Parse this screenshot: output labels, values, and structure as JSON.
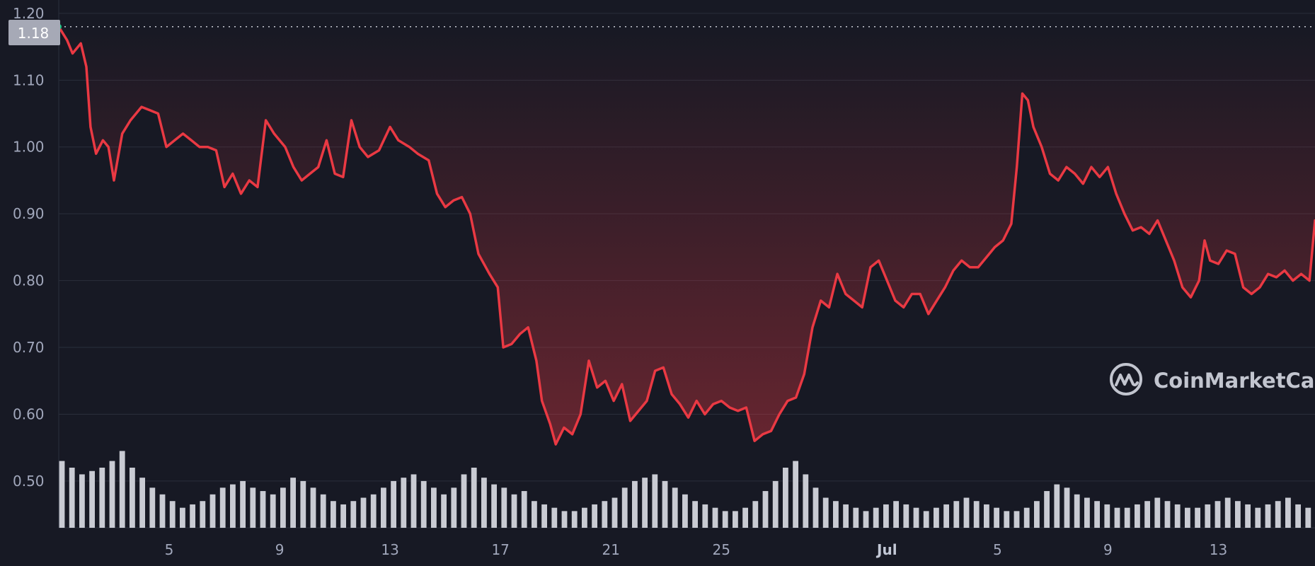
{
  "chart_data": {
    "type": "area",
    "title": "",
    "xlabel": "",
    "ylabel": "",
    "y_ticks": [
      "0.50",
      "0.60",
      "0.70",
      "0.80",
      "0.90",
      "1.00",
      "1.10",
      "1.20"
    ],
    "x_ticks": [
      {
        "label": "5",
        "day": 5,
        "bold": false
      },
      {
        "label": "9",
        "day": 9,
        "bold": false
      },
      {
        "label": "13",
        "day": 13,
        "bold": false
      },
      {
        "label": "17",
        "day": 17,
        "bold": false
      },
      {
        "label": "21",
        "day": 21,
        "bold": false
      },
      {
        "label": "25",
        "day": 25,
        "bold": false
      },
      {
        "label": "Jul",
        "day": 31,
        "bold": true
      },
      {
        "label": "5",
        "day": 35,
        "bold": false
      },
      {
        "label": "9",
        "day": 39,
        "bold": false
      },
      {
        "label": "13",
        "day": 43,
        "bold": false
      }
    ],
    "ylim": [
      0.43,
      1.22
    ],
    "xlim_days": [
      1,
      46.5
    ],
    "current_price": "1.18",
    "grid": true,
    "price_series": {
      "name": "",
      "color": "#ea3943",
      "points": [
        [
          1.0,
          1.18
        ],
        [
          1.3,
          1.16
        ],
        [
          1.5,
          1.14
        ],
        [
          1.8,
          1.155
        ],
        [
          2.0,
          1.12
        ],
        [
          2.15,
          1.03
        ],
        [
          2.35,
          0.99
        ],
        [
          2.6,
          1.01
        ],
        [
          2.8,
          1.0
        ],
        [
          3.0,
          0.95
        ],
        [
          3.3,
          1.02
        ],
        [
          3.6,
          1.04
        ],
        [
          4.0,
          1.06
        ],
        [
          4.3,
          1.055
        ],
        [
          4.6,
          1.05
        ],
        [
          4.9,
          1.0
        ],
        [
          5.2,
          1.01
        ],
        [
          5.5,
          1.02
        ],
        [
          5.8,
          1.01
        ],
        [
          6.1,
          1.0
        ],
        [
          6.4,
          1.0
        ],
        [
          6.7,
          0.995
        ],
        [
          7.0,
          0.94
        ],
        [
          7.3,
          0.96
        ],
        [
          7.6,
          0.93
        ],
        [
          7.9,
          0.95
        ],
        [
          8.2,
          0.94
        ],
        [
          8.5,
          1.04
        ],
        [
          8.8,
          1.02
        ],
        [
          9.2,
          1.0
        ],
        [
          9.5,
          0.97
        ],
        [
          9.8,
          0.95
        ],
        [
          10.1,
          0.96
        ],
        [
          10.4,
          0.97
        ],
        [
          10.7,
          1.01
        ],
        [
          11.0,
          0.96
        ],
        [
          11.3,
          0.955
        ],
        [
          11.6,
          1.04
        ],
        [
          11.9,
          1.0
        ],
        [
          12.2,
          0.985
        ],
        [
          12.6,
          0.995
        ],
        [
          13.0,
          1.03
        ],
        [
          13.3,
          1.01
        ],
        [
          13.7,
          1.0
        ],
        [
          14.0,
          0.99
        ],
        [
          14.4,
          0.98
        ],
        [
          14.7,
          0.93
        ],
        [
          15.0,
          0.91
        ],
        [
          15.3,
          0.92
        ],
        [
          15.6,
          0.925
        ],
        [
          15.9,
          0.9
        ],
        [
          16.2,
          0.84
        ],
        [
          16.6,
          0.81
        ],
        [
          16.9,
          0.79
        ],
        [
          17.1,
          0.7
        ],
        [
          17.4,
          0.705
        ],
        [
          17.7,
          0.72
        ],
        [
          18.0,
          0.73
        ],
        [
          18.3,
          0.68
        ],
        [
          18.5,
          0.62
        ],
        [
          18.8,
          0.585
        ],
        [
          19.0,
          0.555
        ],
        [
          19.3,
          0.58
        ],
        [
          19.6,
          0.57
        ],
        [
          19.9,
          0.6
        ],
        [
          20.2,
          0.68
        ],
        [
          20.5,
          0.64
        ],
        [
          20.8,
          0.65
        ],
        [
          21.1,
          0.62
        ],
        [
          21.4,
          0.645
        ],
        [
          21.7,
          0.59
        ],
        [
          22.0,
          0.605
        ],
        [
          22.3,
          0.62
        ],
        [
          22.6,
          0.665
        ],
        [
          22.9,
          0.67
        ],
        [
          23.2,
          0.63
        ],
        [
          23.5,
          0.615
        ],
        [
          23.8,
          0.595
        ],
        [
          24.1,
          0.62
        ],
        [
          24.4,
          0.6
        ],
        [
          24.7,
          0.615
        ],
        [
          25.0,
          0.62
        ],
        [
          25.3,
          0.61
        ],
        [
          25.6,
          0.605
        ],
        [
          25.9,
          0.61
        ],
        [
          26.2,
          0.56
        ],
        [
          26.5,
          0.57
        ],
        [
          26.8,
          0.575
        ],
        [
          27.1,
          0.6
        ],
        [
          27.4,
          0.62
        ],
        [
          27.7,
          0.625
        ],
        [
          28.0,
          0.66
        ],
        [
          28.3,
          0.73
        ],
        [
          28.6,
          0.77
        ],
        [
          28.9,
          0.76
        ],
        [
          29.2,
          0.81
        ],
        [
          29.5,
          0.78
        ],
        [
          29.8,
          0.77
        ],
        [
          30.1,
          0.76
        ],
        [
          30.4,
          0.82
        ],
        [
          30.7,
          0.83
        ],
        [
          31.0,
          0.8
        ],
        [
          31.3,
          0.77
        ],
        [
          31.6,
          0.76
        ],
        [
          31.9,
          0.78
        ],
        [
          32.2,
          0.78
        ],
        [
          32.5,
          0.75
        ],
        [
          32.8,
          0.77
        ],
        [
          33.1,
          0.79
        ],
        [
          33.4,
          0.815
        ],
        [
          33.7,
          0.83
        ],
        [
          34.0,
          0.82
        ],
        [
          34.3,
          0.82
        ],
        [
          34.6,
          0.835
        ],
        [
          34.9,
          0.85
        ],
        [
          35.2,
          0.86
        ],
        [
          35.5,
          0.885
        ],
        [
          35.7,
          0.97
        ],
        [
          35.9,
          1.08
        ],
        [
          36.1,
          1.07
        ],
        [
          36.3,
          1.03
        ],
        [
          36.6,
          1.0
        ],
        [
          36.9,
          0.96
        ],
        [
          37.2,
          0.95
        ],
        [
          37.5,
          0.97
        ],
        [
          37.8,
          0.96
        ],
        [
          38.1,
          0.945
        ],
        [
          38.4,
          0.97
        ],
        [
          38.7,
          0.955
        ],
        [
          39.0,
          0.97
        ],
        [
          39.3,
          0.93
        ],
        [
          39.6,
          0.9
        ],
        [
          39.9,
          0.875
        ],
        [
          40.2,
          0.88
        ],
        [
          40.5,
          0.87
        ],
        [
          40.8,
          0.89
        ],
        [
          41.1,
          0.86
        ],
        [
          41.4,
          0.83
        ],
        [
          41.7,
          0.79
        ],
        [
          42.0,
          0.775
        ],
        [
          42.3,
          0.8
        ],
        [
          42.5,
          0.86
        ],
        [
          42.7,
          0.83
        ],
        [
          43.0,
          0.825
        ],
        [
          43.3,
          0.845
        ],
        [
          43.6,
          0.84
        ],
        [
          43.9,
          0.79
        ],
        [
          44.2,
          0.78
        ],
        [
          44.5,
          0.79
        ],
        [
          44.8,
          0.81
        ],
        [
          45.1,
          0.805
        ],
        [
          45.4,
          0.815
        ],
        [
          45.7,
          0.8
        ],
        [
          46.0,
          0.81
        ],
        [
          46.3,
          0.8
        ],
        [
          46.5,
          0.89
        ]
      ]
    },
    "volume_series": {
      "name": "",
      "values": [
        0.53,
        0.52,
        0.51,
        0.515,
        0.52,
        0.53,
        0.545,
        0.52,
        0.505,
        0.49,
        0.48,
        0.47,
        0.46,
        0.465,
        0.47,
        0.48,
        0.49,
        0.495,
        0.5,
        0.49,
        0.485,
        0.48,
        0.49,
        0.505,
        0.5,
        0.49,
        0.48,
        0.47,
        0.465,
        0.47,
        0.475,
        0.48,
        0.49,
        0.5,
        0.505,
        0.51,
        0.5,
        0.49,
        0.48,
        0.49,
        0.51,
        0.52,
        0.505,
        0.495,
        0.49,
        0.48,
        0.485,
        0.47,
        0.465,
        0.46,
        0.455,
        0.455,
        0.46,
        0.465,
        0.47,
        0.475,
        0.49,
        0.5,
        0.505,
        0.51,
        0.5,
        0.49,
        0.48,
        0.47,
        0.465,
        0.46,
        0.455,
        0.455,
        0.46,
        0.47,
        0.485,
        0.5,
        0.52,
        0.53,
        0.51,
        0.49,
        0.475,
        0.47,
        0.465,
        0.46,
        0.455,
        0.46,
        0.465,
        0.47,
        0.465,
        0.46,
        0.455,
        0.46,
        0.465,
        0.47,
        0.475,
        0.47,
        0.465,
        0.46,
        0.455,
        0.455,
        0.46,
        0.47,
        0.485,
        0.495,
        0.49,
        0.48,
        0.475,
        0.47,
        0.465,
        0.46,
        0.46,
        0.465,
        0.47,
        0.475,
        0.47,
        0.465,
        0.46,
        0.46,
        0.465,
        0.47,
        0.475,
        0.47,
        0.465,
        0.46,
        0.465,
        0.47,
        0.475,
        0.465,
        0.46
      ]
    }
  },
  "watermark": {
    "brand": "CoinMarketCap",
    "icon": "coinmarketcap-logo-icon"
  },
  "colors": {
    "background": "#171924",
    "price_line": "#ea3943",
    "start_dot": "#16c784",
    "badge": "#a6a9b6",
    "grid": "#2a2e3b"
  }
}
